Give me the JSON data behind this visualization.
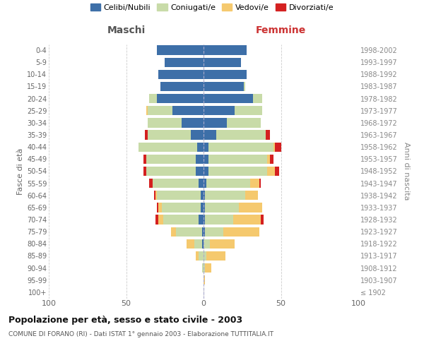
{
  "age_groups": [
    "100+",
    "95-99",
    "90-94",
    "85-89",
    "80-84",
    "75-79",
    "70-74",
    "65-69",
    "60-64",
    "55-59",
    "50-54",
    "45-49",
    "40-44",
    "35-39",
    "30-34",
    "25-29",
    "20-24",
    "15-19",
    "10-14",
    "5-9",
    "0-4"
  ],
  "birth_years": [
    "≤ 1902",
    "1903-1907",
    "1908-1912",
    "1913-1917",
    "1918-1922",
    "1923-1927",
    "1928-1932",
    "1933-1937",
    "1938-1942",
    "1943-1947",
    "1948-1952",
    "1953-1957",
    "1958-1962",
    "1963-1967",
    "1968-1972",
    "1973-1977",
    "1978-1982",
    "1983-1987",
    "1988-1992",
    "1993-1997",
    "1998-2002"
  ],
  "maschi": {
    "celibi": [
      0,
      0,
      0,
      0,
      1,
      1,
      3,
      2,
      2,
      3,
      5,
      5,
      4,
      8,
      14,
      20,
      30,
      28,
      29,
      25,
      30
    ],
    "coniugati": [
      0,
      0,
      1,
      3,
      5,
      17,
      23,
      25,
      28,
      30,
      32,
      32,
      38,
      28,
      22,
      16,
      5,
      0,
      0,
      0,
      0
    ],
    "vedovi": [
      0,
      0,
      0,
      2,
      5,
      3,
      3,
      2,
      1,
      0,
      0,
      0,
      0,
      0,
      0,
      1,
      0,
      0,
      0,
      0,
      0
    ],
    "divorziati": [
      0,
      0,
      0,
      0,
      0,
      0,
      2,
      1,
      1,
      2,
      2,
      2,
      0,
      2,
      0,
      0,
      0,
      0,
      0,
      0,
      0
    ]
  },
  "femmine": {
    "nubili": [
      0,
      0,
      0,
      0,
      0,
      1,
      1,
      1,
      1,
      2,
      3,
      3,
      3,
      8,
      15,
      20,
      32,
      26,
      28,
      24,
      28
    ],
    "coniugate": [
      0,
      0,
      1,
      2,
      4,
      12,
      18,
      22,
      26,
      28,
      38,
      38,
      42,
      32,
      22,
      18,
      6,
      1,
      0,
      0,
      0
    ],
    "vedove": [
      0,
      1,
      4,
      12,
      16,
      23,
      18,
      15,
      8,
      6,
      5,
      2,
      1,
      0,
      0,
      0,
      0,
      0,
      0,
      0,
      0
    ],
    "divorziate": [
      0,
      0,
      0,
      0,
      0,
      0,
      2,
      0,
      0,
      1,
      3,
      2,
      4,
      3,
      0,
      0,
      0,
      0,
      0,
      0,
      0
    ]
  },
  "colors": {
    "celibi_nubili": "#3d6fa8",
    "coniugati": "#c8dba8",
    "vedovi": "#f5c96e",
    "divorziati": "#d42020"
  },
  "title": "Popolazione per età, sesso e stato civile - 2003",
  "subtitle": "COMUNE DI FORANO (RI) - Dati ISTAT 1° gennaio 2003 - Elaborazione TUTTITALIA.IT",
  "ylabel_left": "Fasce di età",
  "ylabel_right": "Anni di nascita",
  "xlabel_left": "Maschi",
  "xlabel_right": "Femmine",
  "xlim": 100,
  "background_color": "#ffffff",
  "grid_color": "#cccccc"
}
